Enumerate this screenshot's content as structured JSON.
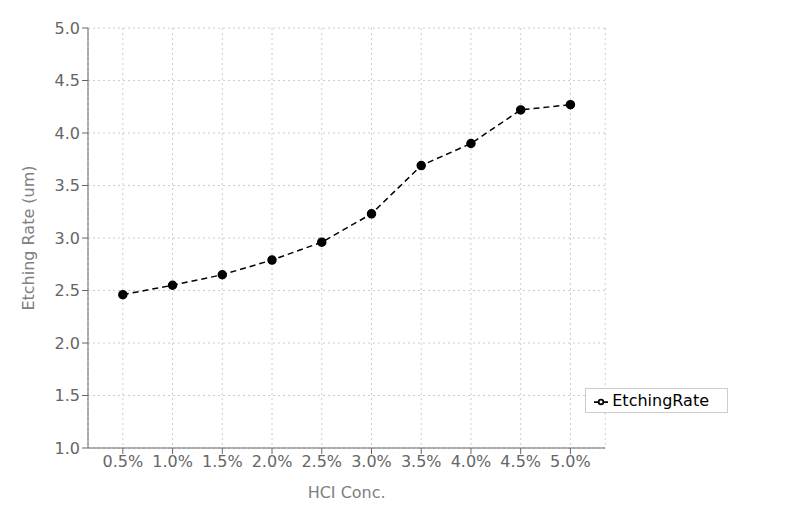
{
  "chart_data": {
    "type": "line",
    "x": [
      0.5,
      1.0,
      1.5,
      2.0,
      2.5,
      3.0,
      3.5,
      4.0,
      4.5,
      5.0
    ],
    "series": [
      {
        "name": "EtchingRate",
        "color": "#000000",
        "values": [
          2.46,
          2.55,
          2.65,
          2.79,
          2.96,
          3.23,
          3.69,
          3.9,
          4.22,
          4.27
        ],
        "marker": "circle",
        "line_style": "dashed"
      }
    ],
    "xlabel": "HCI Conc.",
    "ylabel": "Etching Rate (um)",
    "xlim": [
      0.15,
      5.35
    ],
    "xticks": [
      {
        "value": 0.5,
        "label": "0.5%"
      },
      {
        "value": 1.0,
        "label": "1.0%"
      },
      {
        "value": 1.5,
        "label": "1.5%"
      },
      {
        "value": 2.0,
        "label": "2.0%"
      },
      {
        "value": 2.5,
        "label": "2.5%"
      },
      {
        "value": 3.0,
        "label": "3.0%"
      },
      {
        "value": 3.5,
        "label": "3.5%"
      },
      {
        "value": 4.0,
        "label": "4.0%"
      },
      {
        "value": 4.5,
        "label": "4.5%"
      },
      {
        "value": 5.0,
        "label": "5.0%"
      }
    ],
    "ylim": [
      1.0,
      5.0
    ],
    "yticks": [
      {
        "value": 1.0,
        "label": "1.0"
      },
      1.5,
      {
        "value": 2.0,
        "label": "2.0"
      },
      2.5,
      {
        "value": 3.0,
        "label": "3.0"
      },
      3.5,
      {
        "value": 4.0,
        "label": "4.0"
      },
      4.5,
      {
        "value": 5.0,
        "label": "5.0"
      }
    ],
    "grid": true,
    "legend": "lower right"
  }
}
